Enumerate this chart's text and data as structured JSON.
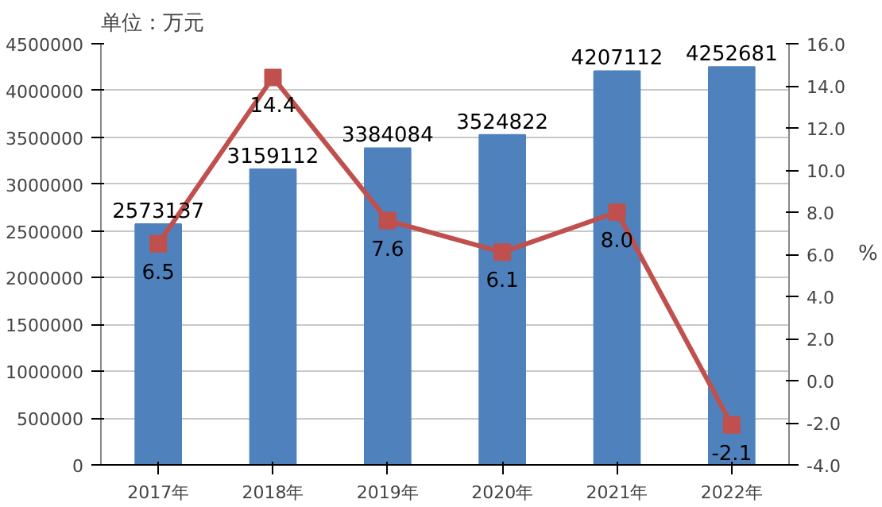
{
  "chart_data": {
    "type": "bar",
    "ylabel": "单位：万元",
    "y2label": "%",
    "categories": [
      "2017年",
      "2018年",
      "2019年",
      "2020年",
      "2021年",
      "2022年"
    ],
    "series": [
      {
        "color": "#4f81bd",
        "values": [
          2573137,
          3159112,
          3384084,
          3524822,
          4207112,
          4252681
        ]
      },
      {
        "type": "line",
        "axis": "y2",
        "color": "#c0504d",
        "marker": "square",
        "values": [
          6.5,
          14.4,
          7.6,
          6.1,
          8.0,
          -2.1
        ],
        "value_labels": [
          "6.5",
          "14.4",
          "7.6",
          "6.1",
          "8.0",
          "-2.1"
        ]
      }
    ],
    "ylim": [
      0,
      4500000
    ],
    "yticks": [
      0,
      500000,
      1000000,
      1500000,
      2000000,
      2500000,
      3000000,
      3500000,
      4000000,
      4500000
    ],
    "y2lim": [
      -4,
      16
    ],
    "y2ticks": [
      {
        "value": -4,
        "label": "-4.0"
      },
      {
        "value": -2,
        "label": "-2.0"
      },
      {
        "value": 0,
        "label": "0.0"
      },
      {
        "value": 2,
        "label": "2.0"
      },
      {
        "value": 4,
        "label": "4.0"
      },
      {
        "value": 6,
        "label": "6.0"
      },
      {
        "value": 8,
        "label": "8.0"
      },
      {
        "value": 10,
        "label": "10.0"
      },
      {
        "value": 12,
        "label": "12.0"
      },
      {
        "value": 14,
        "label": "14.0"
      },
      {
        "value": 16,
        "label": "16.0"
      }
    ],
    "grid": "y",
    "data_labels": true
  }
}
